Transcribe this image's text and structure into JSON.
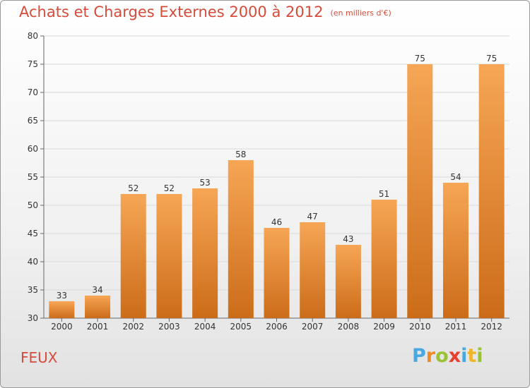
{
  "header": {
    "title": "Achats et Charges Externes 2000 à 2012",
    "subtitle": "(en milliers d'€)"
  },
  "footer": {
    "label": "FEUX",
    "logo_letters": [
      "P",
      "r",
      "o",
      "x",
      "i",
      "t",
      "i"
    ],
    "logo_colors": [
      "#4aa8e0",
      "#f08a24",
      "#9bc234",
      "#e8402e",
      "#4aa8e0",
      "#f0b429",
      "#9bc234"
    ]
  },
  "colors": {
    "bar_top": "#f6a655",
    "bar_bottom": "#cc6c19",
    "title": "#d64b3a",
    "grid": "#d9d9d9"
  },
  "chart_data": {
    "type": "bar",
    "title": "Achats et Charges Externes 2000 à 2012",
    "subtitle": "(en milliers d'€)",
    "xlabel": "",
    "ylabel": "",
    "categories": [
      "2000",
      "2001",
      "2002",
      "2003",
      "2004",
      "2005",
      "2006",
      "2007",
      "2008",
      "2009",
      "2010",
      "2011",
      "2012"
    ],
    "values": [
      33,
      34,
      52,
      52,
      53,
      58,
      46,
      47,
      43,
      51,
      75,
      54,
      75
    ],
    "ylim": [
      30,
      80
    ],
    "yticks": [
      30,
      35,
      40,
      45,
      50,
      55,
      60,
      65,
      70,
      75,
      80
    ],
    "grid": true
  }
}
